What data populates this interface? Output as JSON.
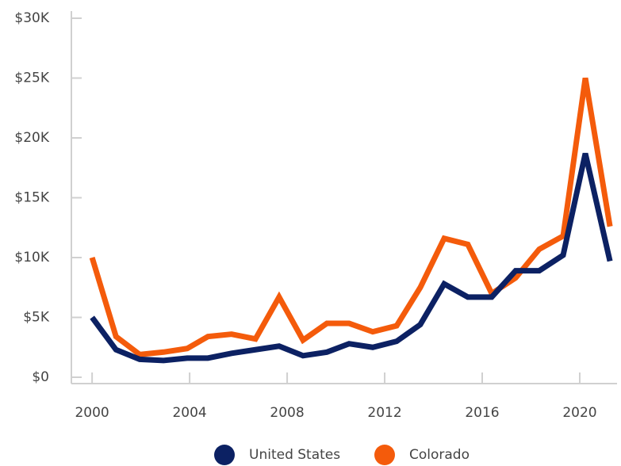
{
  "chart_data": {
    "type": "line",
    "x": [
      2000,
      2000.98,
      2001.95,
      2002.93,
      2003.9,
      2004.75,
      2005.72,
      2006.7,
      2007.67,
      2008.65,
      2009.63,
      2010.54,
      2011.51,
      2012.49,
      2013.46,
      2014.44,
      2015.41,
      2016.39,
      2017.37,
      2018.34,
      2019.32,
      2020.23,
      2021.24
    ],
    "series": [
      {
        "name": "United States",
        "color": "#0c2163",
        "values": [
          5000,
          2300,
          1500,
          1400,
          1600,
          1600,
          2000,
          2300,
          2600,
          1800,
          2100,
          2800,
          2500,
          3000,
          4400,
          7800,
          6700,
          6700,
          8900,
          8900,
          10200,
          18700,
          9700
        ]
      },
      {
        "name": "Colorado",
        "color": "#f45b0b",
        "values": [
          10000,
          3400,
          1900,
          2100,
          2400,
          3400,
          3600,
          3200,
          6700,
          3100,
          4500,
          4500,
          3800,
          4300,
          7500,
          11600,
          11100,
          7000,
          8300,
          10700,
          11800,
          25000,
          12600
        ]
      }
    ],
    "xlim": [
      1999.15,
      2021.53
    ],
    "xticks": [
      2000,
      2004,
      2008,
      2012,
      2016,
      2020
    ],
    "ylim": [
      0,
      30000
    ],
    "yticks": [
      {
        "value": 0,
        "label": "$0"
      },
      {
        "value": 5000,
        "label": "$5K"
      },
      {
        "value": 10000,
        "label": "$10K"
      },
      {
        "value": 15000,
        "label": "$15K"
      },
      {
        "value": 20000,
        "label": "$20K"
      },
      {
        "value": 25000,
        "label": "$25K"
      },
      {
        "value": 30000,
        "label": "$30K"
      }
    ],
    "legend": "bottom"
  }
}
